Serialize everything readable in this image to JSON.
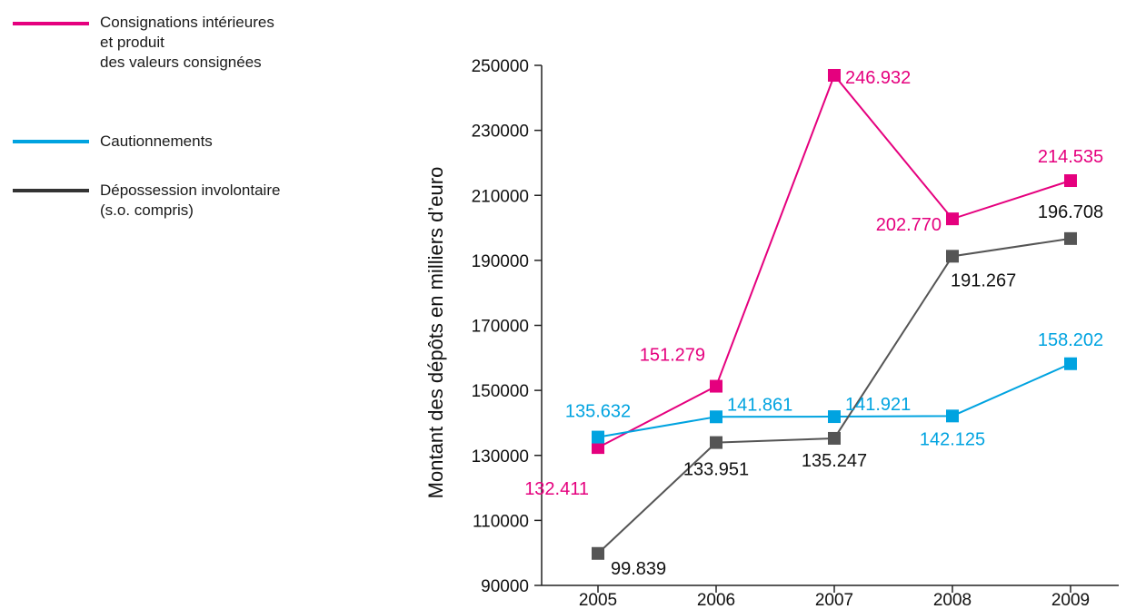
{
  "chart_data": {
    "type": "line",
    "title": "",
    "xlabel": "",
    "ylabel": "Montant des dépôts en milliers d’euro",
    "categories": [
      "2005",
      "2006",
      "2007",
      "2008",
      "2009"
    ],
    "yticks": [
      90000,
      110000,
      130000,
      150000,
      170000,
      190000,
      210000,
      230000,
      250000
    ],
    "ytick_labels": [
      "90000",
      "110000",
      "130000",
      "150000",
      "170000",
      "190000",
      "210000",
      "230000",
      "250000"
    ],
    "ylim": [
      90000,
      250000
    ],
    "grid": false,
    "legend_position": "top-left",
    "series": [
      {
        "name": "Consignations intérieures\net produit\ndes valeurs consignées",
        "color": "#e5007e",
        "values": [
          132411,
          151279,
          246932,
          202770,
          214535
        ],
        "labels": [
          "132.411",
          "151.279",
          "246.932",
          "202.770",
          "214.535"
        ]
      },
      {
        "name": "Cautionnements",
        "color": "#00a3e0",
        "values": [
          135632,
          141861,
          141921,
          142125,
          158202
        ],
        "labels": [
          "135.632",
          "141.861",
          "141.921",
          "142.125",
          "158.202"
        ]
      },
      {
        "name": "Dépossession involontaire\n(s.o. compris)",
        "color": "#555555",
        "label_color": "#111111",
        "values": [
          99839,
          133951,
          135247,
          191267,
          196708
        ],
        "labels": [
          "99.839",
          "133.951",
          "135.247",
          "191.267",
          "196.708"
        ]
      }
    ]
  }
}
